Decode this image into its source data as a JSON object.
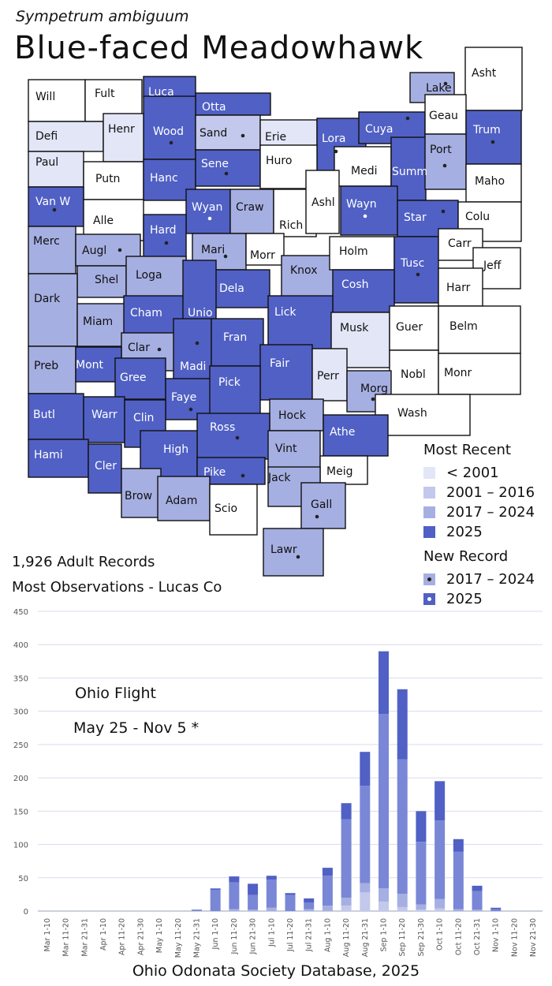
{
  "header": {
    "scientific_name": "Sympetrum ambiguum",
    "common_name": "Blue-faced Meadowhawk"
  },
  "colors": {
    "pre2001": "#e2e6f7",
    "y2001_2016": "#c3c9ec",
    "y2017_2024": "#a6afe2",
    "y2025": "#5060c4",
    "none": "#ffffff"
  },
  "map": {
    "counties": [
      {
        "name": "Will",
        "status": "none",
        "dot": "none"
      },
      {
        "name": "Fult",
        "status": "none",
        "dot": "none"
      },
      {
        "name": "Luca",
        "status": "2025",
        "dot": "none"
      },
      {
        "name": "Otta",
        "status": "2025",
        "dot": "none"
      },
      {
        "name": "Wood",
        "status": "2025",
        "dot": "2025"
      },
      {
        "name": "Defi",
        "status": "pre2001",
        "dot": "none"
      },
      {
        "name": "Henr",
        "status": "pre2001",
        "dot": "none"
      },
      {
        "name": "Sand",
        "status": "2001-2016",
        "dot": "2025"
      },
      {
        "name": "Erie",
        "status": "pre2001",
        "dot": "none"
      },
      {
        "name": "Lora",
        "status": "2025",
        "dot": "2025"
      },
      {
        "name": "Cuya",
        "status": "2025",
        "dot": "2025"
      },
      {
        "name": "Lake",
        "status": "2017-2024",
        "dot": "2025"
      },
      {
        "name": "Asht",
        "status": "none",
        "dot": "none"
      },
      {
        "name": "Geau",
        "status": "none",
        "dot": "none"
      },
      {
        "name": "Trum",
        "status": "2025",
        "dot": "2025"
      },
      {
        "name": "Paul",
        "status": "pre2001",
        "dot": "none"
      },
      {
        "name": "Putn",
        "status": "none",
        "dot": "none"
      },
      {
        "name": "Hanc",
        "status": "2025",
        "dot": "none"
      },
      {
        "name": "Sene",
        "status": "2025",
        "dot": "2025"
      },
      {
        "name": "Huro",
        "status": "none",
        "dot": "none"
      },
      {
        "name": "Medi",
        "status": "none",
        "dot": "none"
      },
      {
        "name": "Summ",
        "status": "2025",
        "dot": "none"
      },
      {
        "name": "Port",
        "status": "2017-2024",
        "dot": "2025"
      },
      {
        "name": "Maho",
        "status": "none",
        "dot": "none"
      },
      {
        "name": "Van W",
        "status": "2025",
        "dot": "2025"
      },
      {
        "name": "Alle",
        "status": "none",
        "dot": "none"
      },
      {
        "name": "Wyan",
        "status": "2025",
        "dot": "2017-2024"
      },
      {
        "name": "Craw",
        "status": "2017-2024",
        "dot": "none"
      },
      {
        "name": "Rich",
        "status": "none",
        "dot": "none"
      },
      {
        "name": "Ashl",
        "status": "none",
        "dot": "none"
      },
      {
        "name": "Wayn",
        "status": "2025",
        "dot": "2017-2024"
      },
      {
        "name": "Star",
        "status": "2025",
        "dot": "2025"
      },
      {
        "name": "Colu",
        "status": "none",
        "dot": "none"
      },
      {
        "name": "Merc",
        "status": "2017-2024",
        "dot": "none"
      },
      {
        "name": "Augl",
        "status": "2017-2024",
        "dot": "2025"
      },
      {
        "name": "Hard",
        "status": "2025",
        "dot": "2025"
      },
      {
        "name": "Mari",
        "status": "2017-2024",
        "dot": "2025"
      },
      {
        "name": "Morr",
        "status": "none",
        "dot": "none"
      },
      {
        "name": "Knox",
        "status": "2017-2024",
        "dot": "none"
      },
      {
        "name": "Holm",
        "status": "none",
        "dot": "none"
      },
      {
        "name": "Tusc",
        "status": "2025",
        "dot": "2025"
      },
      {
        "name": "Carr",
        "status": "none",
        "dot": "none"
      },
      {
        "name": "Jeff",
        "status": "none",
        "dot": "none"
      },
      {
        "name": "Shel",
        "status": "2017-2024",
        "dot": "none"
      },
      {
        "name": "Loga",
        "status": "2017-2024",
        "dot": "none"
      },
      {
        "name": "Dela",
        "status": "2025",
        "dot": "none"
      },
      {
        "name": "Cosh",
        "status": "2025",
        "dot": "none"
      },
      {
        "name": "Harr",
        "status": "none",
        "dot": "none"
      },
      {
        "name": "Dark",
        "status": "2017-2024",
        "dot": "none"
      },
      {
        "name": "Miam",
        "status": "2017-2024",
        "dot": "none"
      },
      {
        "name": "Cham",
        "status": "2025",
        "dot": "none"
      },
      {
        "name": "Unio",
        "status": "2025",
        "dot": "none"
      },
      {
        "name": "Lick",
        "status": "2025",
        "dot": "none"
      },
      {
        "name": "Musk",
        "status": "pre2001",
        "dot": "none"
      },
      {
        "name": "Guer",
        "status": "none",
        "dot": "none"
      },
      {
        "name": "Belm",
        "status": "none",
        "dot": "none"
      },
      {
        "name": "Clar",
        "status": "2017-2024",
        "dot": "2025"
      },
      {
        "name": "Madi",
        "status": "2025",
        "dot": "2025"
      },
      {
        "name": "Fran",
        "status": "2025",
        "dot": "none"
      },
      {
        "name": "Preb",
        "status": "2017-2024",
        "dot": "none"
      },
      {
        "name": "Mont",
        "status": "2025",
        "dot": "none"
      },
      {
        "name": "Gree",
        "status": "2025",
        "dot": "none"
      },
      {
        "name": "Fair",
        "status": "2025",
        "dot": "none"
      },
      {
        "name": "Perr",
        "status": "pre2001",
        "dot": "none"
      },
      {
        "name": "Nobl",
        "status": "none",
        "dot": "none"
      },
      {
        "name": "Monr",
        "status": "none",
        "dot": "none"
      },
      {
        "name": "Faye",
        "status": "2025",
        "dot": "2025"
      },
      {
        "name": "Pick",
        "status": "2025",
        "dot": "none"
      },
      {
        "name": "Morg",
        "status": "2017-2024",
        "dot": "2025"
      },
      {
        "name": "Butl",
        "status": "2025",
        "dot": "none"
      },
      {
        "name": "Warr",
        "status": "2025",
        "dot": "none"
      },
      {
        "name": "Clin",
        "status": "2025",
        "dot": "none"
      },
      {
        "name": "Hock",
        "status": "2017-2024",
        "dot": "none"
      },
      {
        "name": "Wash",
        "status": "none",
        "dot": "none"
      },
      {
        "name": "Ross",
        "status": "2025",
        "dot": "2025"
      },
      {
        "name": "Athe",
        "status": "2025",
        "dot": "none"
      },
      {
        "name": "Hami",
        "status": "2025",
        "dot": "none"
      },
      {
        "name": "High",
        "status": "2025",
        "dot": "none"
      },
      {
        "name": "Vint",
        "status": "2017-2024",
        "dot": "none"
      },
      {
        "name": "Cler",
        "status": "2025",
        "dot": "none"
      },
      {
        "name": "Meig",
        "status": "none",
        "dot": "none"
      },
      {
        "name": "Pike",
        "status": "2025",
        "dot": "2025"
      },
      {
        "name": "Jack",
        "status": "2017-2024",
        "dot": "none"
      },
      {
        "name": "Brow",
        "status": "2017-2024",
        "dot": "none"
      },
      {
        "name": "Adam",
        "status": "2017-2024",
        "dot": "none"
      },
      {
        "name": "Scio",
        "status": "none",
        "dot": "none"
      },
      {
        "name": "Gall",
        "status": "2017-2024",
        "dot": "2025"
      },
      {
        "name": "Lawr",
        "status": "2017-2024",
        "dot": "2025"
      }
    ]
  },
  "legend": {
    "title_recent": "Most Recent",
    "recent_items": [
      "< 2001",
      "2001 – 2016",
      "2017 – 2024",
      "2025"
    ],
    "title_new": "New Record",
    "new_items": [
      "2017 – 2024",
      "2025"
    ]
  },
  "stats": {
    "records": "1,926 Adult Records",
    "most_obs": "Most Observations - Lucas Co"
  },
  "flight": {
    "title": "Ohio Flight",
    "range": "May 25 - Nov 5 *"
  },
  "footer": "Ohio Odonata Society Database, 2025",
  "chart_data": {
    "type": "bar",
    "stacked": true,
    "categories": [
      "Mar 1-10",
      "Mar 11-20",
      "Mar 21-31",
      "Apr 1-10",
      "Apr 11-20",
      "Apr 21-30",
      "May 1-10",
      "May 11-20",
      "May 21-31",
      "Jun 1-10",
      "Jun 11-20",
      "Jun 21-30",
      "Jul 1-10",
      "Jul 11-20",
      "Jul 21-31",
      "Aug 1-10",
      "Aug 11-20",
      "Aug 21-31",
      "Sep 1-10",
      "Sep 11-20",
      "Sep 21-30",
      "Oct 1-10",
      "Oct 11-20",
      "Oct 21-31",
      "Nov 1-10",
      "Nov 11-20",
      "Nov 21-30"
    ],
    "series": [
      {
        "color": "#c3c9ec",
        "values": [
          0,
          0,
          0,
          0,
          0,
          0,
          0,
          0,
          0,
          0,
          0,
          0,
          0,
          0,
          0,
          0,
          8,
          28,
          14,
          6,
          2,
          4,
          0,
          0,
          0,
          0,
          0
        ]
      },
      {
        "color": "#a6afe2",
        "values": [
          0,
          0,
          0,
          0,
          0,
          0,
          0,
          0,
          0,
          0,
          3,
          2,
          5,
          0,
          3,
          8,
          12,
          14,
          20,
          20,
          8,
          14,
          3,
          2,
          0,
          0,
          0
        ]
      },
      {
        "color": "#7a87d6",
        "values": [
          0,
          0,
          0,
          0,
          0,
          0,
          0,
          0,
          1,
          32,
          40,
          22,
          42,
          24,
          10,
          45,
          118,
          146,
          262,
          202,
          94,
          118,
          86,
          28,
          3,
          0,
          0
        ]
      },
      {
        "color": "#5060c4",
        "values": [
          0,
          0,
          0,
          0,
          0,
          0,
          0,
          0,
          1,
          2,
          9,
          17,
          6,
          3,
          6,
          12,
          24,
          51,
          94,
          105,
          46,
          59,
          19,
          8,
          2,
          0,
          0
        ]
      }
    ],
    "totals": [
      0,
      0,
      0,
      0,
      0,
      0,
      0,
      0,
      2,
      34,
      52,
      41,
      53,
      27,
      19,
      65,
      162,
      239,
      390,
      333,
      150,
      195,
      108,
      38,
      5,
      0,
      0
    ],
    "yticks": [
      0,
      50,
      100,
      150,
      200,
      250,
      300,
      350,
      400,
      450
    ],
    "ylim": [
      0,
      450
    ],
    "grid": true
  }
}
